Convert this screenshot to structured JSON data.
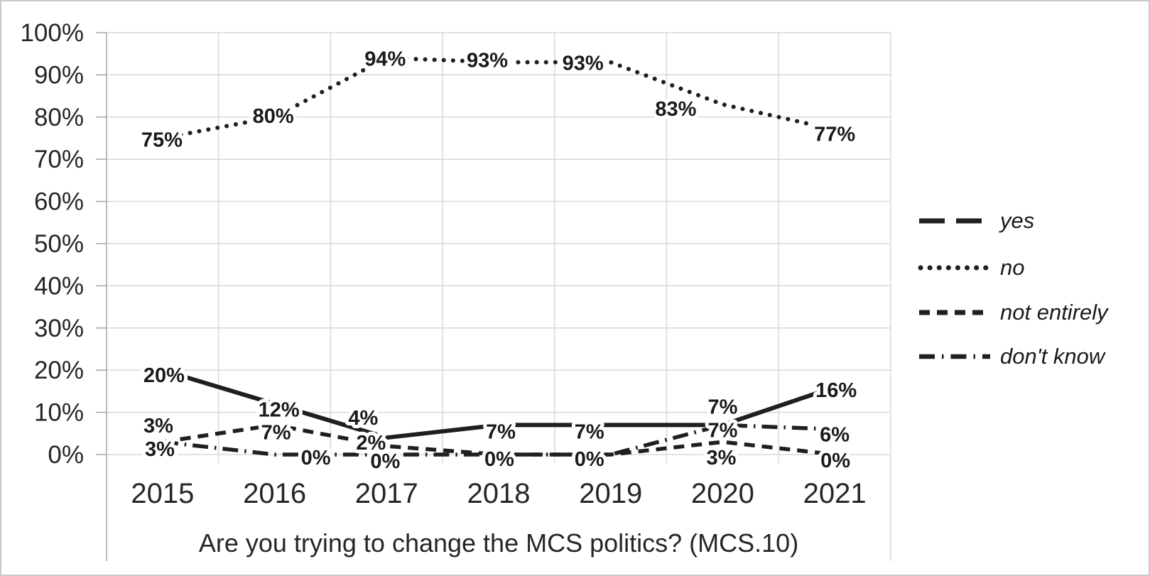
{
  "chart_data": {
    "type": "line",
    "title": "Are you trying to change the MCS politics? (MCS.10)",
    "categories": [
      "2015",
      "2016",
      "2017",
      "2018",
      "2019",
      "2020",
      "2021"
    ],
    "y_axis": {
      "min": 0,
      "max": 100,
      "step": 10,
      "tick_labels": [
        "0%",
        "10%",
        "20%",
        "30%",
        "40%",
        "50%",
        "60%",
        "70%",
        "80%",
        "90%",
        "100%"
      ]
    },
    "grid": true,
    "legend_position": "right",
    "series": [
      {
        "name": "yes",
        "line_style": "solid",
        "values": [
          20,
          12,
          4,
          7,
          7,
          7,
          16
        ],
        "point_labels": [
          "20%",
          "12%",
          "4%",
          "7%",
          "7%",
          "7%",
          "16%"
        ]
      },
      {
        "name": "no",
        "line_style": "dotted",
        "values": [
          75,
          80,
          94,
          93,
          93,
          83,
          77
        ],
        "point_labels": [
          "75%",
          "80%",
          "94%",
          "93%",
          "93%",
          "83%",
          "77%"
        ]
      },
      {
        "name": "not entirely",
        "line_style": "dashed",
        "values": [
          3,
          7,
          2,
          0,
          0,
          3,
          0
        ],
        "point_labels": [
          "3%",
          "7%",
          "2%",
          "0%",
          "0%",
          "3%",
          "0%"
        ]
      },
      {
        "name": "don't know",
        "line_style": "dash-dot",
        "values": [
          3,
          0,
          0,
          0,
          0,
          7,
          6
        ],
        "point_labels": [
          "3%",
          "0%",
          "0%",
          "",
          "",
          "7%",
          "6%"
        ]
      }
    ],
    "colors": {
      "line": "#1f1f1f",
      "grid": "#d9d9d9",
      "axis": "#a6a6a6",
      "text": "#262626",
      "background": "#ffffff",
      "border": "#c9c9c9"
    }
  }
}
